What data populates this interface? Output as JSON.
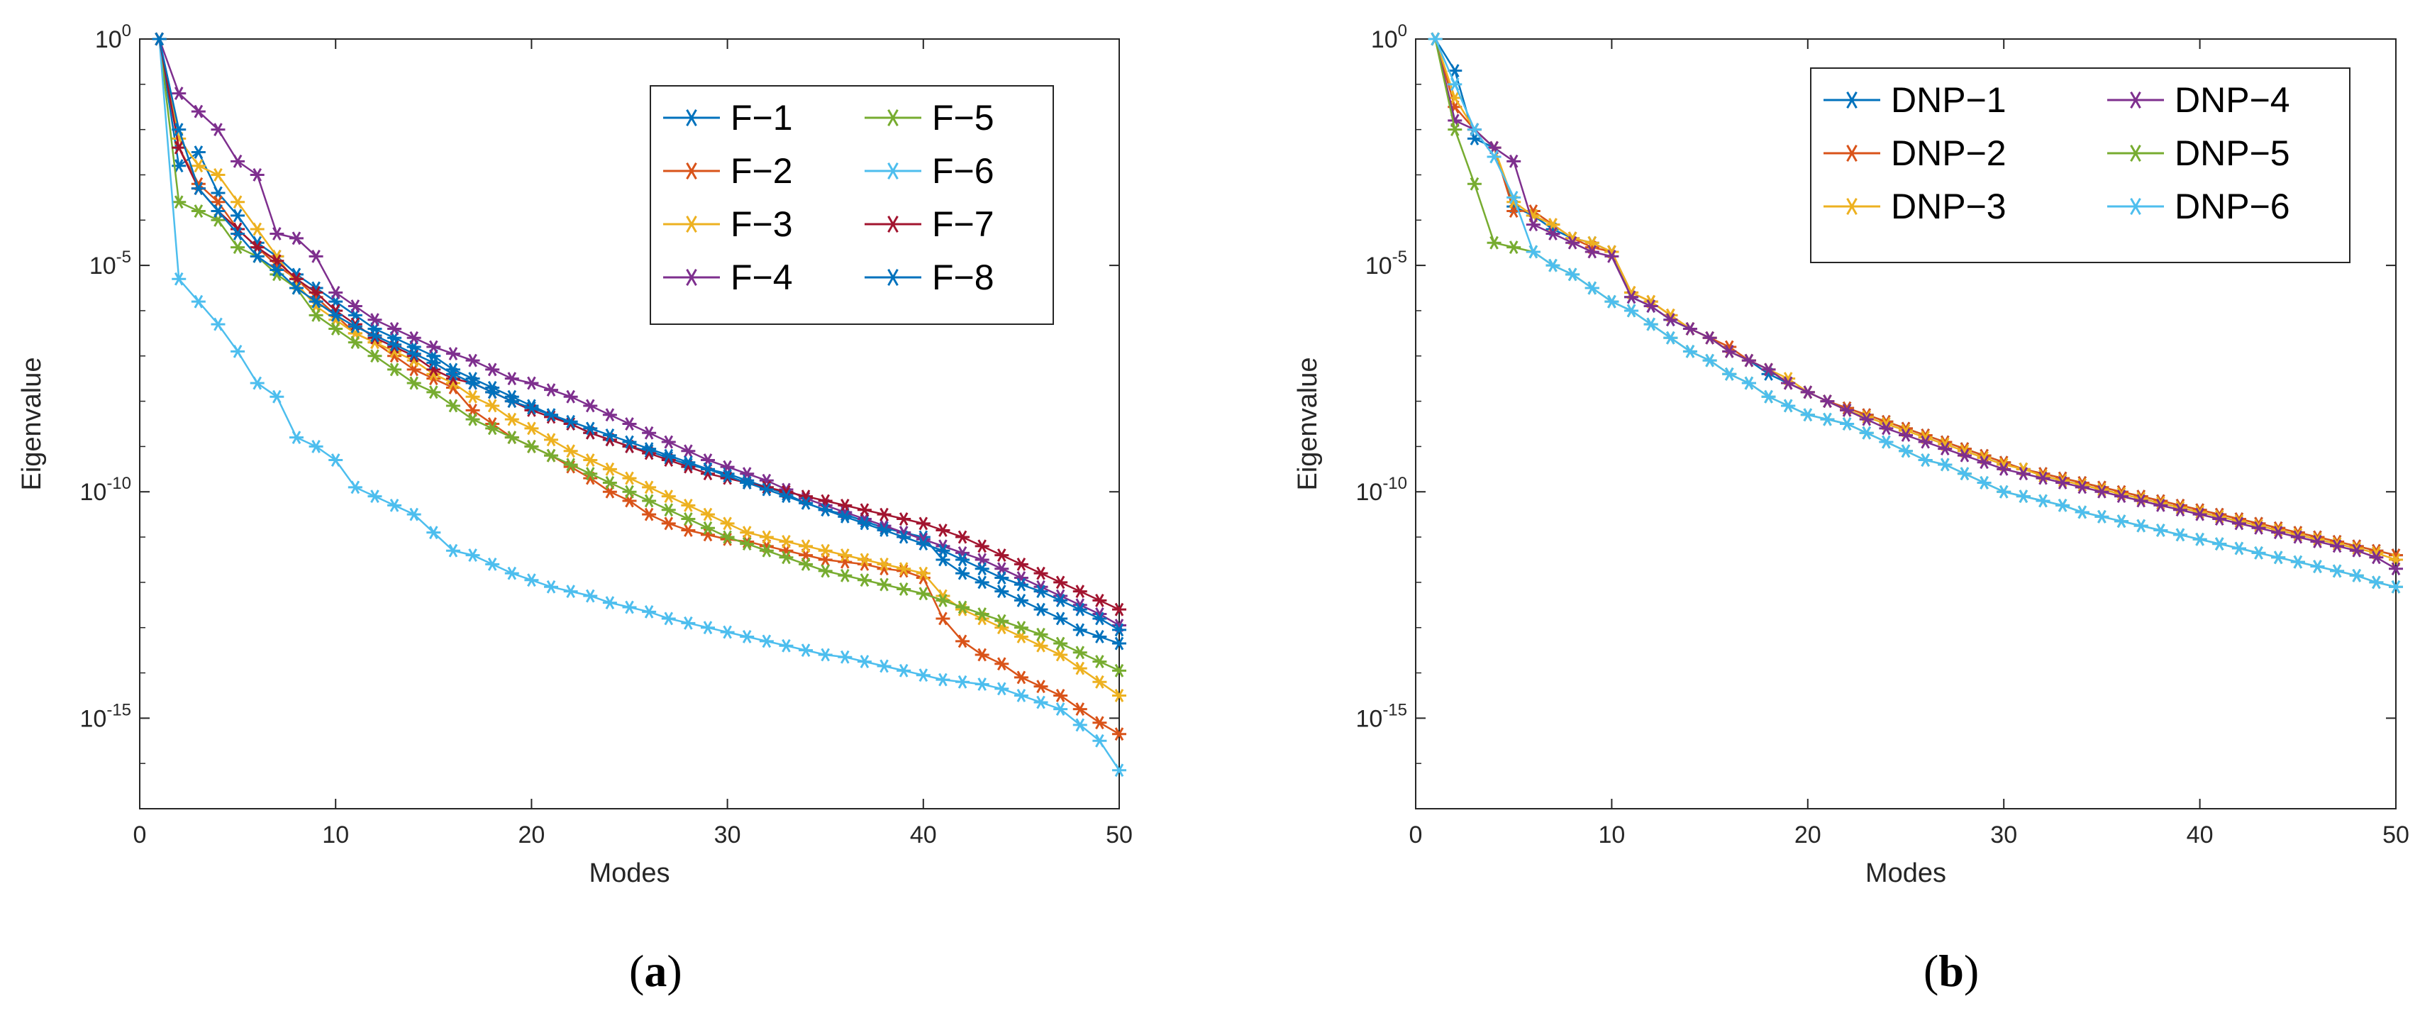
{
  "chart_data": [
    {
      "type": "line",
      "panel": "a",
      "caption": {
        "open": "(",
        "letter": "a",
        "close": ")"
      },
      "xlabel": "Modes",
      "ylabel": "Eigenvalue",
      "xlim": [
        0,
        50
      ],
      "yscale": "log",
      "ylim_exponent": [
        -17,
        0
      ],
      "xticks": [
        "0",
        "10",
        "20",
        "30",
        "40",
        "50"
      ],
      "yticks": [
        {
          "base": "10",
          "exp": "0",
          "value": 0
        },
        {
          "base": "10",
          "exp": "-5",
          "value": -5
        },
        {
          "base": "10",
          "exp": "-10",
          "value": -10
        },
        {
          "base": "10",
          "exp": "-15",
          "value": -15
        }
      ],
      "legend_position": "top-right",
      "legend_columns": 2,
      "marker": "asterisk",
      "series": [
        {
          "name": "F−1",
          "color": "#0072BD",
          "log10_values": [
            0.0,
            -2.8,
            -2.5,
            -3.4,
            -3.9,
            -4.5,
            -4.8,
            -5.2,
            -5.5,
            -5.8,
            -6.1,
            -6.4,
            -6.6,
            -6.8,
            -7.0,
            -7.3,
            -7.5,
            -7.7,
            -7.9,
            -8.1,
            -8.3,
            -8.5,
            -8.7,
            -8.85,
            -9.0,
            -9.1,
            -9.25,
            -9.4,
            -9.5,
            -9.6,
            -9.75,
            -9.9,
            -10.05,
            -10.25,
            -10.4,
            -10.5,
            -10.65,
            -10.8,
            -10.9,
            -11.0,
            -11.5,
            -11.8,
            -12.0,
            -12.2,
            -12.4,
            -12.6,
            -12.8,
            -13.05,
            -13.2,
            -13.35
          ]
        },
        {
          "name": "F−2",
          "color": "#D95319",
          "log10_values": [
            0.0,
            -2.4,
            -3.2,
            -3.6,
            -4.2,
            -4.6,
            -5.0,
            -5.3,
            -5.7,
            -6.1,
            -6.5,
            -6.7,
            -7.0,
            -7.3,
            -7.5,
            -7.7,
            -8.2,
            -8.5,
            -8.8,
            -9.0,
            -9.2,
            -9.45,
            -9.7,
            -10.0,
            -10.2,
            -10.5,
            -10.7,
            -10.85,
            -10.95,
            -11.05,
            -11.1,
            -11.2,
            -11.3,
            -11.4,
            -11.5,
            -11.55,
            -11.6,
            -11.7,
            -11.75,
            -11.9,
            -12.8,
            -13.3,
            -13.6,
            -13.8,
            -14.1,
            -14.3,
            -14.5,
            -14.8,
            -15.1,
            -15.35
          ]
        },
        {
          "name": "F−3",
          "color": "#EDB120",
          "log10_values": [
            0.0,
            -2.2,
            -2.8,
            -3.0,
            -3.6,
            -4.2,
            -4.8,
            -5.4,
            -5.9,
            -6.2,
            -6.5,
            -6.7,
            -6.9,
            -7.1,
            -7.4,
            -7.6,
            -7.9,
            -8.1,
            -8.4,
            -8.6,
            -8.85,
            -9.1,
            -9.3,
            -9.5,
            -9.7,
            -9.9,
            -10.1,
            -10.3,
            -10.5,
            -10.7,
            -10.9,
            -11.0,
            -11.1,
            -11.2,
            -11.3,
            -11.4,
            -11.5,
            -11.6,
            -11.7,
            -11.8,
            -12.3,
            -12.6,
            -12.8,
            -13.0,
            -13.2,
            -13.4,
            -13.6,
            -13.9,
            -14.2,
            -14.5
          ]
        },
        {
          "name": "F−4",
          "color": "#7E2F8E",
          "log10_values": [
            0.0,
            -1.2,
            -1.6,
            -2.0,
            -2.7,
            -3.0,
            -4.3,
            -4.4,
            -4.8,
            -5.6,
            -5.9,
            -6.2,
            -6.4,
            -6.6,
            -6.8,
            -6.95,
            -7.1,
            -7.3,
            -7.5,
            -7.6,
            -7.75,
            -7.9,
            -8.1,
            -8.3,
            -8.5,
            -8.7,
            -8.9,
            -9.1,
            -9.3,
            -9.45,
            -9.6,
            -9.75,
            -9.95,
            -10.15,
            -10.3,
            -10.45,
            -10.6,
            -10.75,
            -10.9,
            -11.05,
            -11.2,
            -11.35,
            -11.5,
            -11.7,
            -11.9,
            -12.1,
            -12.3,
            -12.5,
            -12.7,
            -12.95
          ]
        },
        {
          "name": "F−5",
          "color": "#77AC30",
          "log10_values": [
            0.0,
            -3.6,
            -3.8,
            -4.0,
            -4.6,
            -4.8,
            -5.2,
            -5.5,
            -6.1,
            -6.4,
            -6.7,
            -7.0,
            -7.3,
            -7.6,
            -7.8,
            -8.1,
            -8.4,
            -8.6,
            -8.8,
            -9.0,
            -9.2,
            -9.4,
            -9.6,
            -9.8,
            -10.0,
            -10.2,
            -10.4,
            -10.6,
            -10.8,
            -11.0,
            -11.15,
            -11.3,
            -11.45,
            -11.6,
            -11.75,
            -11.85,
            -11.95,
            -12.05,
            -12.15,
            -12.25,
            -12.4,
            -12.55,
            -12.7,
            -12.85,
            -13.0,
            -13.15,
            -13.35,
            -13.55,
            -13.75,
            -13.95
          ]
        },
        {
          "name": "F−6",
          "color": "#4DBEEE",
          "log10_values": [
            0.0,
            -5.3,
            -5.8,
            -6.3,
            -6.9,
            -7.6,
            -7.9,
            -8.8,
            -9.0,
            -9.3,
            -9.9,
            -10.1,
            -10.3,
            -10.5,
            -10.9,
            -11.3,
            -11.4,
            -11.6,
            -11.8,
            -11.95,
            -12.1,
            -12.2,
            -12.3,
            -12.45,
            -12.55,
            -12.65,
            -12.8,
            -12.9,
            -13.0,
            -13.1,
            -13.2,
            -13.3,
            -13.4,
            -13.5,
            -13.6,
            -13.65,
            -13.75,
            -13.85,
            -13.95,
            -14.05,
            -14.15,
            -14.2,
            -14.25,
            -14.35,
            -14.5,
            -14.65,
            -14.8,
            -15.15,
            -15.5,
            -16.15
          ]
        },
        {
          "name": "F−7",
          "color": "#A2142F",
          "log10_values": [
            0.0,
            -2.4,
            -3.3,
            -3.8,
            -4.2,
            -4.6,
            -4.9,
            -5.3,
            -5.6,
            -6.0,
            -6.3,
            -6.6,
            -6.8,
            -7.0,
            -7.3,
            -7.5,
            -7.6,
            -7.8,
            -8.0,
            -8.2,
            -8.35,
            -8.5,
            -8.7,
            -8.85,
            -9.0,
            -9.15,
            -9.3,
            -9.45,
            -9.6,
            -9.7,
            -9.8,
            -9.9,
            -10.0,
            -10.1,
            -10.2,
            -10.3,
            -10.4,
            -10.5,
            -10.6,
            -10.7,
            -10.85,
            -11.0,
            -11.2,
            -11.4,
            -11.6,
            -11.8,
            -12.0,
            -12.2,
            -12.4,
            -12.6
          ]
        },
        {
          "name": "F−8",
          "color": "#0072BD",
          "log10_values": [
            0.0,
            -2.0,
            -3.3,
            -3.8,
            -4.3,
            -4.8,
            -5.1,
            -5.5,
            -5.8,
            -6.1,
            -6.35,
            -6.55,
            -6.75,
            -6.95,
            -7.15,
            -7.4,
            -7.6,
            -7.8,
            -8.0,
            -8.15,
            -8.3,
            -8.45,
            -8.6,
            -8.75,
            -8.9,
            -9.05,
            -9.2,
            -9.35,
            -9.5,
            -9.65,
            -9.8,
            -9.95,
            -10.1,
            -10.25,
            -10.4,
            -10.55,
            -10.7,
            -10.85,
            -11.0,
            -11.15,
            -11.3,
            -11.5,
            -11.7,
            -11.9,
            -12.05,
            -12.2,
            -12.4,
            -12.6,
            -12.8,
            -13.05
          ]
        }
      ]
    },
    {
      "type": "line",
      "panel": "b",
      "caption": {
        "open": "(",
        "letter": "b",
        "close": ")"
      },
      "xlabel": "Modes",
      "ylabel": "Eigenvalue",
      "xlim": [
        0,
        50
      ],
      "yscale": "log",
      "ylim_exponent": [
        -17,
        0
      ],
      "xticks": [
        "0",
        "10",
        "20",
        "30",
        "40",
        "50"
      ],
      "yticks": [
        {
          "base": "10",
          "exp": "0",
          "value": 0
        },
        {
          "base": "10",
          "exp": "-5",
          "value": -5
        },
        {
          "base": "10",
          "exp": "-10",
          "value": -10
        },
        {
          "base": "10",
          "exp": "-15",
          "value": -15
        }
      ],
      "legend_position": "top-right",
      "legend_columns": 2,
      "marker": "asterisk",
      "series": [
        {
          "name": "DNP−1",
          "color": "#0072BD",
          "log10_values": [
            0.0,
            -0.7,
            -2.2,
            -2.4,
            -3.7,
            -3.9,
            -4.2,
            -4.4,
            -4.5,
            -4.7,
            -5.7,
            -5.9,
            -6.2,
            -6.4,
            -6.6,
            -6.9,
            -7.1,
            -7.4,
            -7.6,
            -7.8,
            -8.0,
            -8.15,
            -8.3,
            -8.45,
            -8.6,
            -8.75,
            -8.9,
            -9.05,
            -9.2,
            -9.35,
            -9.5,
            -9.6,
            -9.7,
            -9.8,
            -9.9,
            -10.0,
            -10.1,
            -10.2,
            -10.3,
            -10.4,
            -10.5,
            -10.6,
            -10.7,
            -10.8,
            -10.9,
            -11.0,
            -11.1,
            -11.2,
            -11.3,
            -11.4
          ]
        },
        {
          "name": "DNP−2",
          "color": "#D95319",
          "log10_values": [
            0.0,
            -1.5,
            -2.0,
            -2.4,
            -3.8,
            -3.8,
            -4.1,
            -4.4,
            -4.6,
            -4.7,
            -5.6,
            -5.8,
            -6.1,
            -6.4,
            -6.6,
            -6.8,
            -7.1,
            -7.3,
            -7.6,
            -7.8,
            -8.0,
            -8.15,
            -8.3,
            -8.45,
            -8.6,
            -8.75,
            -8.9,
            -9.05,
            -9.2,
            -9.35,
            -9.5,
            -9.6,
            -9.7,
            -9.8,
            -9.9,
            -10.0,
            -10.1,
            -10.2,
            -10.3,
            -10.4,
            -10.5,
            -10.6,
            -10.7,
            -10.8,
            -10.9,
            -11.0,
            -11.1,
            -11.2,
            -11.3,
            -11.4
          ]
        },
        {
          "name": "DNP−3",
          "color": "#EDB120",
          "log10_values": [
            0.0,
            -1.3,
            -2.0,
            -2.4,
            -3.6,
            -3.9,
            -4.1,
            -4.4,
            -4.5,
            -4.7,
            -5.6,
            -5.8,
            -6.1,
            -6.4,
            -6.6,
            -6.9,
            -7.1,
            -7.3,
            -7.5,
            -7.8,
            -8.0,
            -8.2,
            -8.35,
            -8.5,
            -8.65,
            -8.8,
            -8.95,
            -9.1,
            -9.25,
            -9.4,
            -9.5,
            -9.65,
            -9.75,
            -9.85,
            -9.95,
            -10.05,
            -10.15,
            -10.25,
            -10.35,
            -10.45,
            -10.55,
            -10.65,
            -10.75,
            -10.85,
            -10.95,
            -11.05,
            -11.15,
            -11.25,
            -11.35,
            -11.5
          ]
        },
        {
          "name": "DNP−4",
          "color": "#7E2F8E",
          "log10_values": [
            0.0,
            -1.8,
            -2.0,
            -2.4,
            -2.7,
            -4.1,
            -4.3,
            -4.5,
            -4.7,
            -4.8,
            -5.7,
            -5.9,
            -6.2,
            -6.4,
            -6.6,
            -6.9,
            -7.1,
            -7.3,
            -7.6,
            -7.8,
            -8.0,
            -8.2,
            -8.4,
            -8.6,
            -8.75,
            -8.9,
            -9.05,
            -9.2,
            -9.35,
            -9.5,
            -9.6,
            -9.7,
            -9.8,
            -9.9,
            -10.0,
            -10.1,
            -10.2,
            -10.3,
            -10.4,
            -10.5,
            -10.6,
            -10.7,
            -10.8,
            -10.9,
            -11.0,
            -11.1,
            -11.2,
            -11.3,
            -11.45,
            -11.7
          ]
        },
        {
          "name": "DNP−5",
          "color": "#77AC30",
          "log10_values": [
            0.0,
            -2.0,
            -3.2,
            -4.5,
            -4.6,
            -4.7,
            -5.0,
            -5.2,
            -5.5,
            -5.8,
            -6.0,
            -6.3,
            -6.6,
            -6.9,
            -7.1,
            -7.4,
            -7.6,
            -7.9,
            -8.1,
            -8.3,
            -8.4,
            -8.5,
            -8.7,
            -8.9,
            -9.1,
            -9.3,
            -9.4,
            -9.6,
            -9.8,
            -10.0,
            -10.1,
            -10.2,
            -10.3,
            -10.45,
            -10.55,
            -10.65,
            -10.75,
            -10.85,
            -10.95,
            -11.05,
            -11.15,
            -11.25,
            -11.35,
            -11.45,
            -11.55,
            -11.65,
            -11.75,
            -11.85,
            -12.0,
            -12.1
          ]
        },
        {
          "name": "DNP−6",
          "color": "#4DBEEE",
          "log10_values": [
            0.0,
            -1.0,
            -2.0,
            -2.6,
            -3.5,
            -4.7,
            -5.0,
            -5.2,
            -5.5,
            -5.8,
            -6.0,
            -6.3,
            -6.6,
            -6.9,
            -7.1,
            -7.4,
            -7.6,
            -7.9,
            -8.1,
            -8.3,
            -8.4,
            -8.5,
            -8.7,
            -8.9,
            -9.1,
            -9.3,
            -9.4,
            -9.6,
            -9.8,
            -10.0,
            -10.1,
            -10.2,
            -10.3,
            -10.45,
            -10.55,
            -10.65,
            -10.75,
            -10.85,
            -10.95,
            -11.05,
            -11.15,
            -11.25,
            -11.35,
            -11.45,
            -11.55,
            -11.65,
            -11.75,
            -11.85,
            -12.0,
            -12.1
          ]
        }
      ]
    }
  ]
}
